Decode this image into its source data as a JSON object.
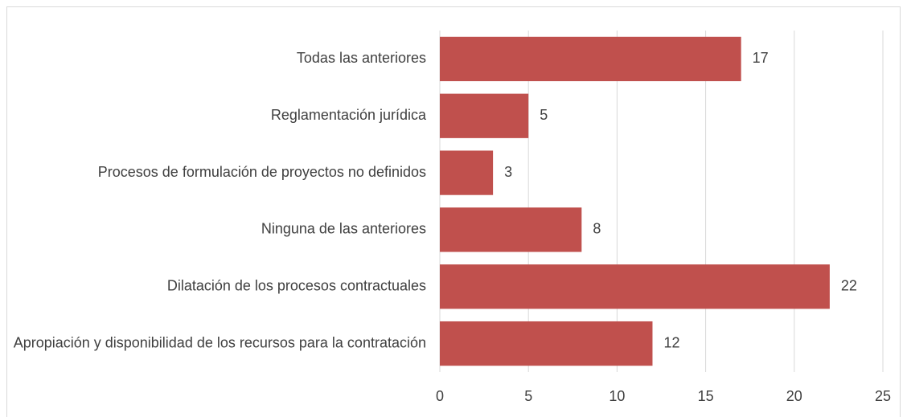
{
  "chart_data": {
    "type": "barh",
    "categories": [
      "Todas las anteriores",
      "Reglamentación jurídica",
      "Procesos de formulación de proyectos no definidos",
      "Ninguna de las anteriores",
      "Dilatación de los procesos contractuales",
      "Apropiación y disponibilidad de los recursos para la contratación"
    ],
    "values": [
      17,
      5,
      3,
      8,
      22,
      12
    ],
    "color": "#c0504d",
    "xlim": [
      0,
      25
    ],
    "xticks": [
      0,
      5,
      10,
      15,
      20,
      25
    ],
    "grid": true
  }
}
